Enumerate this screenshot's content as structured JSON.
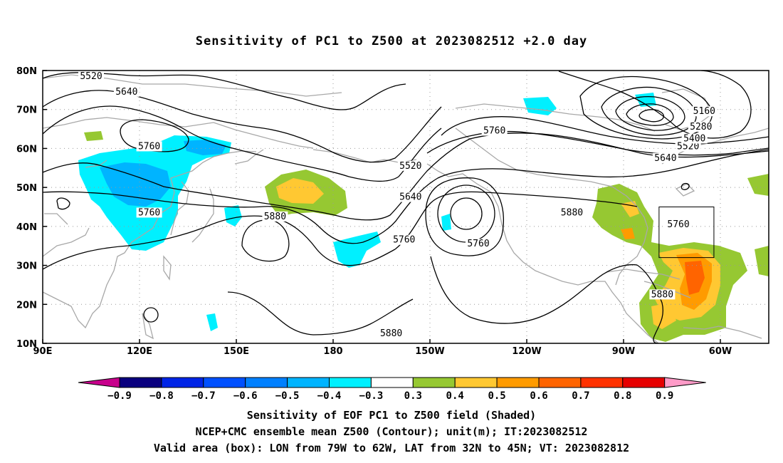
{
  "title": "Sensitivity of PC1 to Z500 at 2023082512 +2.0 day",
  "map": {
    "lat_ticks": [
      {
        "lat": 80,
        "label": "80N"
      },
      {
        "lat": 70,
        "label": "70N"
      },
      {
        "lat": 60,
        "label": "60N"
      },
      {
        "lat": 50,
        "label": "50N"
      },
      {
        "lat": 40,
        "label": "40N"
      },
      {
        "lat": 30,
        "label": "30N"
      },
      {
        "lat": 20,
        "label": "20N"
      },
      {
        "lat": 10,
        "label": "10N"
      }
    ],
    "lon_ticks": [
      {
        "lon": 90,
        "label": "90E"
      },
      {
        "lon": 120,
        "label": "120E"
      },
      {
        "lon": 150,
        "label": "150E"
      },
      {
        "lon": 180,
        "label": "180"
      },
      {
        "lon": 210,
        "label": "150W"
      },
      {
        "lon": 240,
        "label": "120W"
      },
      {
        "lon": 270,
        "label": "90W"
      },
      {
        "lon": 300,
        "label": "60W"
      }
    ],
    "lon_range": [
      90,
      315
    ],
    "lat_range": [
      10,
      80
    ],
    "grid": true,
    "contour_labels": [
      {
        "text": "5520",
        "lon": 105,
        "lat": 78
      },
      {
        "text": "5640",
        "lon": 116,
        "lat": 74
      },
      {
        "text": "5760",
        "lon": 123,
        "lat": 60
      },
      {
        "text": "5760",
        "lon": 123,
        "lat": 43
      },
      {
        "text": "5880",
        "lon": 162,
        "lat": 42
      },
      {
        "text": "5520",
        "lon": 204,
        "lat": 55
      },
      {
        "text": "5640",
        "lon": 204,
        "lat": 47
      },
      {
        "text": "5760",
        "lon": 202,
        "lat": 36
      },
      {
        "text": "5760",
        "lon": 230,
        "lat": 64
      },
      {
        "text": "5760",
        "lon": 225,
        "lat": 35
      },
      {
        "text": "5880",
        "lon": 254,
        "lat": 43
      },
      {
        "text": "5880",
        "lon": 198,
        "lat": 12
      },
      {
        "text": "5880",
        "lon": 282,
        "lat": 22
      },
      {
        "text": "5640",
        "lon": 283,
        "lat": 57
      },
      {
        "text": "5520",
        "lon": 290,
        "lat": 60
      },
      {
        "text": "5400",
        "lon": 292,
        "lat": 62
      },
      {
        "text": "5280",
        "lon": 294,
        "lat": 65
      },
      {
        "text": "5160",
        "lon": 295,
        "lat": 69
      },
      {
        "text": "5760",
        "lon": 287,
        "lat": 40
      }
    ],
    "valid_box": {
      "lon_min": 281,
      "lon_max": 298,
      "lat_min": 32,
      "lat_max": 45
    }
  },
  "colorbar": {
    "labels": [
      "−0.9",
      "−0.8",
      "−0.7",
      "−0.6",
      "−0.5",
      "−0.4",
      "−0.3",
      "0.3",
      "0.4",
      "0.5",
      "0.6",
      "0.7",
      "0.8",
      "0.9"
    ],
    "colors": [
      "#0a007f",
      "#0024e6",
      "#0050ff",
      "#0080ff",
      "#00b4ff",
      "#00f0ff",
      "#ffffff",
      "#96c832",
      "#ffc832",
      "#ff9b00",
      "#ff6400",
      "#ff3200",
      "#e60000"
    ],
    "low_end_color": "#c8008c",
    "high_end_color": "#ff9bc8"
  },
  "footer": {
    "line1": "Sensitivity of EOF PC1 to Z500 field (Shaded)",
    "line2": "NCEP+CMC ensemble mean Z500 (Contour); unit(m); IT:2023082512",
    "line3": "Valid area (box): LON from 79W to 62W, LAT from 32N to 45N; VT: 2023082812"
  }
}
